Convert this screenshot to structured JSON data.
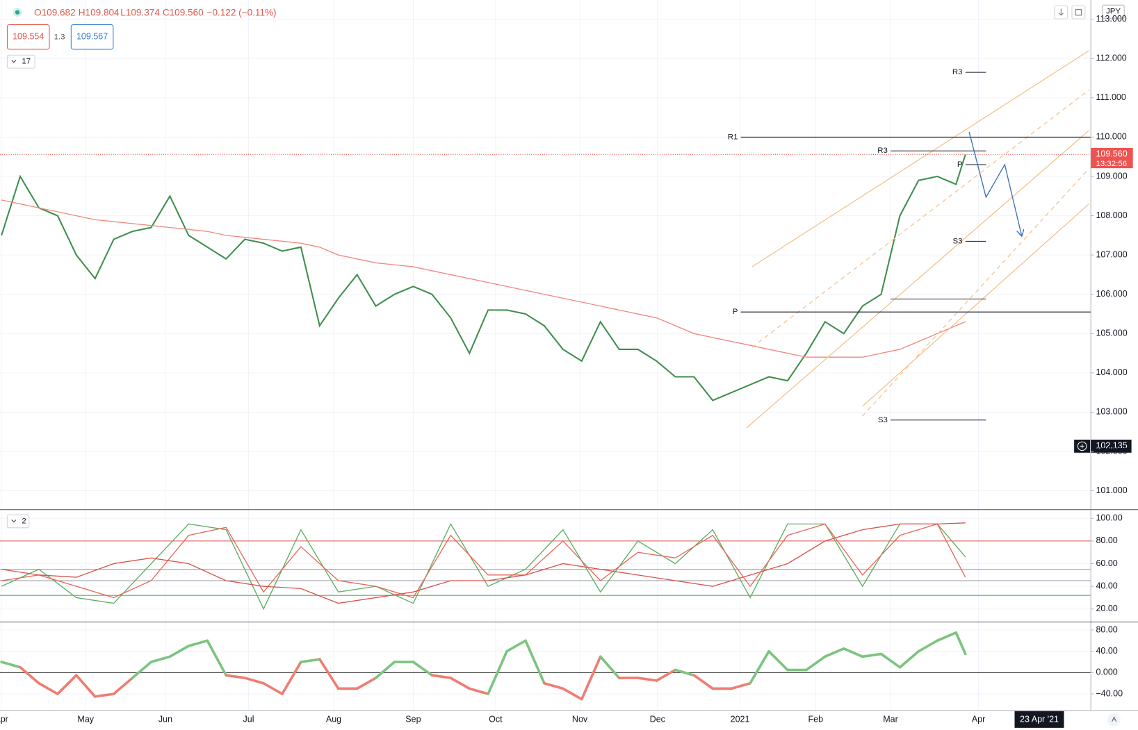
{
  "ui": {
    "ohlc": [
      "O109.682",
      "H109.804",
      "L109.374",
      "C109.560",
      "−0.122 (−0.11%)"
    ],
    "bid": "109.554",
    "spread": "1.3",
    "ask": "109.567",
    "pane1_collapse": "17",
    "pane2_collapse": "2",
    "currency": "JPY",
    "last_price": {
      "value": 109.56,
      "label": "109.560"
    },
    "countdown": "13:32:56",
    "crosshair_price": {
      "value": 102.135,
      "label": "102.135"
    },
    "crosshair_date": "23 Apr '21",
    "auto_scale": "A"
  },
  "chart_data": [
    {
      "type": "line",
      "xlim": [
        0,
        58.2
      ],
      "ylim": [
        100.52,
        113.49
      ],
      "xticks": [
        {
          "value": 0,
          "label": "Apr"
        },
        {
          "value": 4.5,
          "label": "May"
        },
        {
          "value": 8.76,
          "label": "Jun"
        },
        {
          "value": 13.2,
          "label": "Jul"
        },
        {
          "value": 17.75,
          "label": "Aug"
        },
        {
          "value": 22.0,
          "label": "Sep"
        },
        {
          "value": 26.4,
          "label": "Oct"
        },
        {
          "value": 30.9,
          "label": "Nov"
        },
        {
          "value": 35.05,
          "label": "Dec"
        },
        {
          "value": 39.46,
          "label": "2021"
        },
        {
          "value": 43.5,
          "label": "Feb"
        },
        {
          "value": 47.5,
          "label": "Mar"
        },
        {
          "value": 52.2,
          "label": "Apr"
        }
      ],
      "yticks": [
        {
          "value": 101,
          "label": "101.000"
        },
        {
          "value": 102,
          "label": "102.000"
        },
        {
          "value": 103,
          "label": "103.000"
        },
        {
          "value": 104,
          "label": "104.000"
        },
        {
          "value": 105,
          "label": "105.000"
        },
        {
          "value": 106,
          "label": "106.000"
        },
        {
          "value": 107,
          "label": "107.000"
        },
        {
          "value": 108,
          "label": "108.000"
        },
        {
          "value": 109,
          "label": "109.000"
        },
        {
          "value": 110,
          "label": "110.000"
        },
        {
          "value": 111,
          "label": "111.000"
        },
        {
          "value": 112,
          "label": "112.000"
        },
        {
          "value": 113,
          "label": "113.000"
        }
      ],
      "grid": true,
      "x": [
        0,
        1,
        2,
        3,
        4,
        5,
        6,
        7,
        8,
        9,
        10,
        11,
        12,
        13,
        14,
        15,
        16,
        17,
        18,
        19,
        20,
        21,
        22,
        23,
        24,
        25,
        26,
        27,
        28,
        29,
        30,
        31,
        32,
        33,
        34,
        35,
        36,
        37,
        38,
        39,
        40,
        41,
        42,
        43,
        44,
        45,
        46,
        47,
        48,
        49,
        50,
        51,
        51.5
      ],
      "series": [
        {
          "color": "#3f8f4e",
          "values": [
            107.5,
            109.0,
            108.2,
            108.0,
            107.0,
            106.4,
            107.4,
            107.6,
            107.7,
            108.5,
            107.5,
            107.2,
            106.9,
            107.4,
            107.3,
            107.1,
            107.2,
            105.2,
            105.9,
            106.5,
            105.7,
            106.0,
            106.2,
            106.0,
            105.4,
            104.5,
            105.6,
            105.6,
            105.5,
            105.2,
            104.6,
            104.3,
            105.3,
            104.6,
            104.6,
            104.3,
            103.9,
            103.9,
            103.3,
            103.5,
            103.7,
            103.9,
            103.8,
            104.5,
            105.3,
            105.0,
            105.7,
            106.0,
            108.0,
            108.9,
            109.0,
            108.8,
            109.56
          ]
        },
        {
          "color": "#ef8a80",
          "values": [
            108.4,
            108.3,
            108.2,
            108.1,
            108.0,
            107.9,
            107.85,
            107.8,
            107.75,
            107.7,
            107.65,
            107.6,
            107.5,
            107.45,
            107.4,
            107.35,
            107.3,
            107.2,
            107.0,
            106.9,
            106.8,
            106.75,
            106.7,
            106.6,
            106.5,
            106.4,
            106.3,
            106.2,
            106.1,
            106.0,
            105.9,
            105.8,
            105.7,
            105.6,
            105.5,
            105.4,
            105.2,
            105.0,
            104.9,
            104.8,
            104.7,
            104.6,
            104.5,
            104.4,
            104.4,
            104.4,
            104.4,
            104.5,
            104.6,
            104.8,
            105.0,
            105.2,
            105.3
          ]
        }
      ],
      "pivots": [
        {
          "label": "R3",
          "value": 111.65,
          "x": [
            51.5,
            52.6
          ]
        },
        {
          "label": "R1",
          "value": 110.0,
          "x": [
            39.5,
            58.2
          ]
        },
        {
          "label": "R3",
          "value": 109.65,
          "x": [
            47.5,
            52.6
          ]
        },
        {
          "label": "P",
          "value": 109.3,
          "x": [
            51.5,
            52.6
          ]
        },
        {
          "label": "S3",
          "value": 107.35,
          "x": [
            51.5,
            52.6
          ]
        },
        {
          "value": 105.88,
          "x": [
            47.5,
            52.6
          ]
        },
        {
          "label": "P",
          "value": 105.55,
          "x": [
            39.5,
            58.2
          ]
        },
        {
          "label": "S3",
          "value": 102.8,
          "x": [
            47.5,
            52.6
          ]
        }
      ],
      "channel_color": "#f5c08a",
      "channel": [
        {
          "x": [
            40.1,
            58.1
          ],
          "y": [
            106.7,
            112.2
          ],
          "dashed": false
        },
        {
          "x": [
            40.1,
            58.1
          ],
          "y": [
            104.65,
            111.2
          ],
          "dashed": true
        },
        {
          "x": [
            39.8,
            58.1
          ],
          "y": [
            102.6,
            110.17
          ],
          "dashed": false
        },
        {
          "x": [
            46,
            58.1
          ],
          "y": [
            102.9,
            109.2
          ],
          "dashed": true
        },
        {
          "x": [
            46,
            58.1
          ],
          "y": [
            103.15,
            108.3
          ],
          "dashed": false
        }
      ],
      "projection": {
        "color": "#3d6fb6",
        "x": [
          51.7,
          52.6,
          53.6,
          54.5
        ],
        "y": [
          110.13,
          108.47,
          109.3,
          107.5
        ]
      }
    },
    {
      "type": "line",
      "ylim": [
        8.5,
        107.7
      ],
      "yticks": [
        {
          "value": 20,
          "label": "20.00"
        },
        {
          "value": 40,
          "label": "40.00"
        },
        {
          "value": 60,
          "label": "60.00"
        },
        {
          "value": 80,
          "label": "80.00"
        },
        {
          "value": 100,
          "label": "100.00"
        }
      ],
      "x": [
        0,
        2,
        4,
        6,
        8,
        10,
        12,
        14,
        16,
        18,
        20,
        22,
        24,
        26,
        28,
        30,
        32,
        34,
        36,
        38,
        40,
        42,
        44,
        46,
        48,
        50,
        51.5
      ],
      "series": [
        {
          "color": "#5fae62",
          "values": [
            40,
            55,
            30,
            25,
            60,
            95,
            90,
            20,
            90,
            35,
            40,
            25,
            95,
            40,
            55,
            90,
            35,
            80,
            60,
            90,
            30,
            95,
            95,
            40,
            95,
            95,
            66
          ]
        },
        {
          "color": "#e8675c",
          "values": [
            45,
            50,
            40,
            30,
            45,
            85,
            92,
            35,
            75,
            45,
            40,
            30,
            85,
            50,
            50,
            80,
            45,
            70,
            65,
            85,
            40,
            85,
            95,
            50,
            85,
            95,
            48
          ]
        },
        {
          "color": "#d9534a",
          "values": [
            55,
            50,
            48,
            60,
            65,
            60,
            45,
            40,
            38,
            25,
            30,
            35,
            45,
            45,
            50,
            60,
            55,
            50,
            45,
            40,
            50,
            60,
            80,
            90,
            95,
            95,
            96
          ]
        }
      ],
      "levels": [
        {
          "value": 80,
          "color": "#d9534a"
        },
        {
          "value": 55,
          "color": "#9598a1"
        },
        {
          "value": 45,
          "color": "#9598a1"
        },
        {
          "value": 32,
          "color": "#5fae62"
        }
      ]
    },
    {
      "type": "line",
      "ylim": [
        -71,
        95
      ],
      "yticks": [
        {
          "value": -40,
          "label": "−40.00"
        },
        {
          "value": 0,
          "label": "0.000"
        },
        {
          "value": 40,
          "label": "40.00"
        },
        {
          "value": 80,
          "label": "80.00"
        }
      ],
      "x": [
        0,
        1,
        2,
        3,
        4,
        5,
        6,
        7,
        8,
        9,
        10,
        11,
        12,
        13,
        14,
        15,
        16,
        17,
        18,
        19,
        20,
        21,
        22,
        23,
        24,
        25,
        26,
        27,
        28,
        29,
        30,
        31,
        32,
        33,
        34,
        35,
        36,
        37,
        38,
        39,
        40,
        41,
        42,
        43,
        44,
        45,
        46,
        47,
        48,
        49,
        50,
        51,
        51.5
      ],
      "up_color": "#7cc47f",
      "down_color": "#ef7d72",
      "values": [
        20,
        10,
        -20,
        -40,
        -5,
        -45,
        -40,
        -10,
        20,
        30,
        50,
        60,
        -5,
        -10,
        -20,
        -40,
        20,
        25,
        -30,
        -30,
        -10,
        20,
        20,
        -5,
        -10,
        -30,
        -40,
        40,
        60,
        -20,
        -30,
        -50,
        30,
        -10,
        -10,
        -15,
        5,
        -5,
        -30,
        -30,
        -20,
        40,
        5,
        5,
        30,
        45,
        30,
        35,
        10,
        40,
        60,
        75,
        35
      ],
      "levels": [
        {
          "value": 0,
          "color": "#333333"
        }
      ]
    }
  ]
}
